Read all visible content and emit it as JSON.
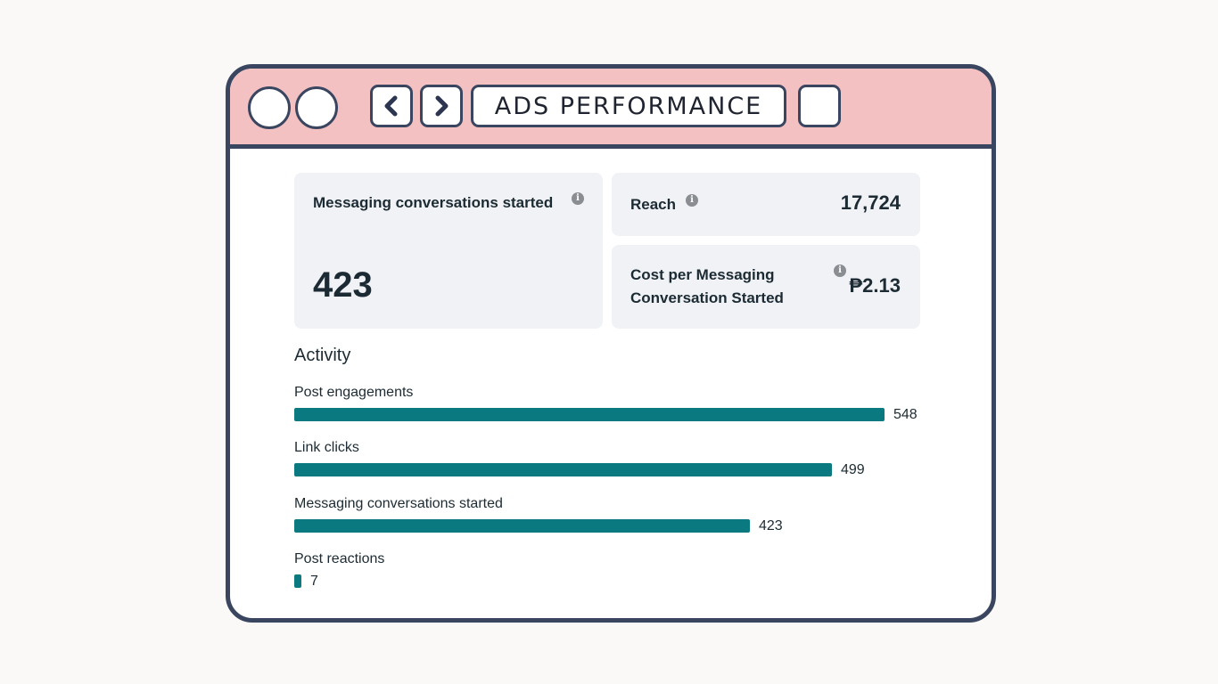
{
  "window": {
    "title": "ADS PERFORMANCE",
    "back_icon": "chevron-left-icon",
    "forward_icon": "chevron-right-icon"
  },
  "cards": {
    "messaging": {
      "label": "Messaging conversations started",
      "value": "423"
    },
    "reach": {
      "label": "Reach",
      "value": "17,724"
    },
    "cost": {
      "label_line1": "Cost per Messaging",
      "label_line2": "Conversation Started",
      "value": "₱2.13"
    }
  },
  "activity": {
    "title": "Activity",
    "max": 548,
    "metrics": [
      {
        "label": "Post engagements",
        "value": 548
      },
      {
        "label": "Link clicks",
        "value": 499
      },
      {
        "label": "Messaging conversations started",
        "value": 423
      },
      {
        "label": "Post reactions",
        "value": 7
      }
    ]
  },
  "colors": {
    "bar": "#0b7a80",
    "titlebar": "#f3c1c1",
    "border": "#3a4560",
    "card": "#f0f2f5"
  }
}
